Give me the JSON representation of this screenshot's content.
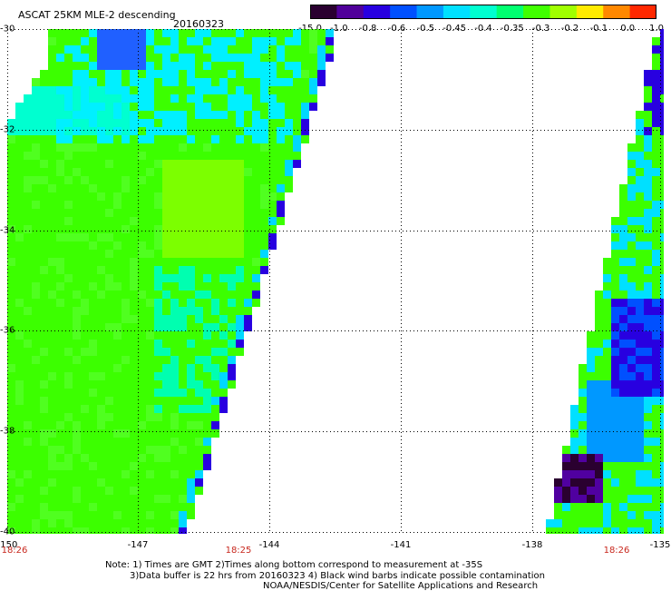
{
  "header": {
    "title": "ASCAT 25KM MLE-2 descending",
    "date": "20160323"
  },
  "colorbar": {
    "labels": [
      "-15.0",
      "-1.0",
      "-0.8",
      "-0.6",
      "-0.5",
      "-0.45",
      "-0.4",
      "-0.35",
      "-0.3",
      "-0.2",
      "-0.1",
      "0.0",
      "1.0"
    ],
    "colors": [
      "#2a0030",
      "#50009a",
      "#2800e0",
      "#0050ff",
      "#0098ff",
      "#00e0ff",
      "#00ffd0",
      "#00ff70",
      "#40ff00",
      "#a0ff00",
      "#ffea00",
      "#ff8800",
      "#ff2800"
    ]
  },
  "map": {
    "lat_labels": [
      "-30",
      "-32",
      "-34",
      "-36",
      "-38",
      "-40"
    ],
    "lon_labels": [
      "-150",
      "-147",
      "-144",
      "-141",
      "-138",
      "-135"
    ],
    "time_labels": [
      "18:26",
      "18:25",
      "18:26"
    ]
  },
  "notes": {
    "line1": "Note: 1) Times are GMT 2)Times along bottom correspond to measurement at -35S",
    "line2": "3)Data buffer is 22 hrs from 20160323 4) Black wind barbs indicate possible contamination",
    "line3": "NOAA/NESDIS/Center for Satellite Applications and Research"
  }
}
